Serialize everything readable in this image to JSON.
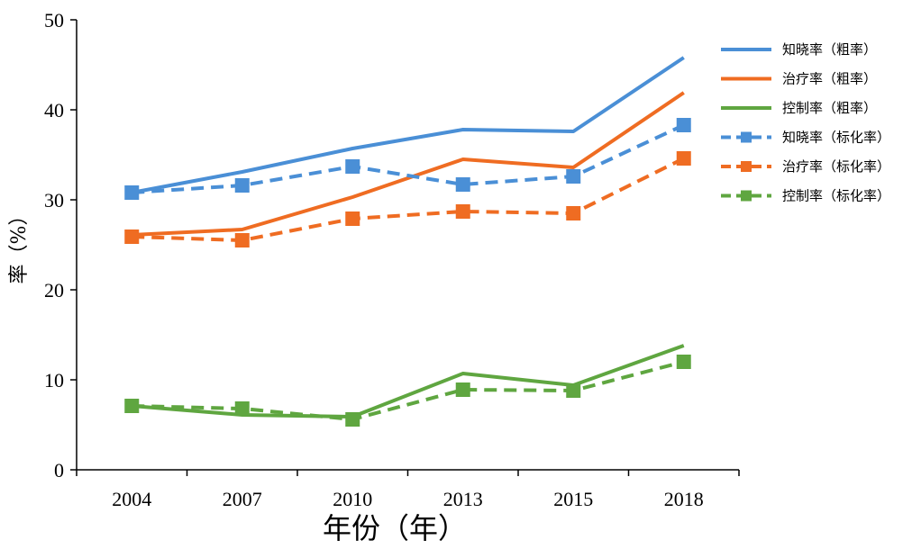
{
  "chart_data": {
    "type": "line",
    "categories": [
      "2004",
      "2007",
      "2010",
      "2013",
      "2015",
      "2018"
    ],
    "xlabel": "年份（年）",
    "ylabel": "率（%）",
    "ylim": [
      0,
      50
    ],
    "yticks": [
      0,
      10,
      20,
      30,
      40,
      50
    ],
    "grid": false,
    "legend": "right",
    "series": [
      {
        "name": "知晓率（粗率）",
        "color": "#4a8fd6",
        "style": "solid",
        "marker": "none",
        "values": [
          30.8,
          33.1,
          35.7,
          37.8,
          37.6,
          45.8
        ]
      },
      {
        "name": "治疗率（粗率）",
        "color": "#ef6c22",
        "style": "solid",
        "marker": "none",
        "values": [
          26.1,
          26.7,
          30.3,
          34.5,
          33.6,
          41.9
        ]
      },
      {
        "name": "控制率（粗率）",
        "color": "#5fa640",
        "style": "solid",
        "marker": "none",
        "values": [
          7.1,
          6.1,
          5.9,
          10.7,
          9.4,
          13.8
        ]
      },
      {
        "name": "知晓率（标化率）",
        "color": "#4a8fd6",
        "style": "dashed",
        "marker": "square",
        "values": [
          30.8,
          31.6,
          33.7,
          31.7,
          32.6,
          38.3
        ]
      },
      {
        "name": "治疗率（标化率）",
        "color": "#ef6c22",
        "style": "dashed",
        "marker": "square",
        "values": [
          25.9,
          25.5,
          27.9,
          28.7,
          28.5,
          34.6
        ]
      },
      {
        "name": "控制率（标化率）",
        "color": "#5fa640",
        "style": "dashed",
        "marker": "square",
        "values": [
          7.1,
          6.8,
          5.6,
          8.9,
          8.8,
          12.0
        ]
      }
    ]
  }
}
